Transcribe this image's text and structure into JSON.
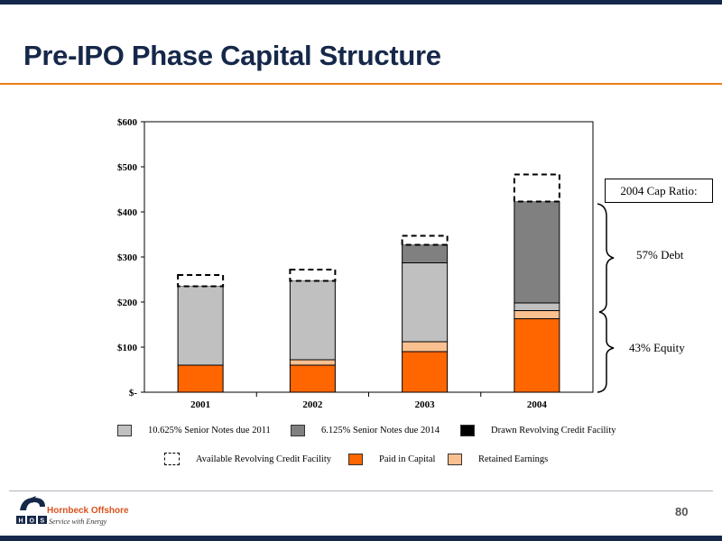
{
  "slide": {
    "title": "Pre-IPO Phase Capital Structure",
    "page_number": "80"
  },
  "brand": {
    "company": "Hornbeck Offshore",
    "tagline": "Service with Energy",
    "logo_letters": "H O S",
    "colors": {
      "navy": "#16284a",
      "orange": "#f07d1a"
    }
  },
  "annotations": {
    "cap_ratio_label": "2004 Cap Ratio:",
    "debt_label": "57% Debt",
    "equity_label": "43% Equity"
  },
  "chart_data": {
    "type": "bar",
    "stacked": true,
    "categories": [
      "2001",
      "2002",
      "2003",
      "2004"
    ],
    "y_ticks": [
      "$-",
      "$100",
      "$200",
      "$300",
      "$400",
      "$500",
      "$600"
    ],
    "ylim": [
      0,
      600
    ],
    "grid": false,
    "legend_position": "bottom",
    "series": [
      {
        "name": "Paid in Capital",
        "color": "#ff6600",
        "values": [
          60,
          60,
          90,
          163
        ]
      },
      {
        "name": "Retained Earnings",
        "color": "#fac090",
        "values": [
          0,
          12,
          22,
          18
        ]
      },
      {
        "name": "10.625% Senior Notes due 2011",
        "color": "#c0c0c0",
        "values": [
          175,
          175,
          175,
          17
        ]
      },
      {
        "name": "6.125% Senior Notes due 2014",
        "color": "#808080",
        "values": [
          0,
          0,
          40,
          225
        ]
      },
      {
        "name": "Drawn Revolving Credit Facility",
        "color": "#000000",
        "values": [
          0,
          0,
          0,
          0
        ]
      },
      {
        "name": "Available Revolving Credit Facility",
        "color": "#ffffff",
        "dashed": true,
        "values": [
          25,
          25,
          20,
          60
        ]
      }
    ],
    "legend_rows": [
      [
        "10.625% Senior Notes due 2011",
        "6.125% Senior Notes due 2014",
        "Drawn Revolving Credit Facility"
      ],
      [
        "Available Revolving Credit Facility",
        "Paid in Capital",
        "Retained Earnings"
      ]
    ]
  }
}
